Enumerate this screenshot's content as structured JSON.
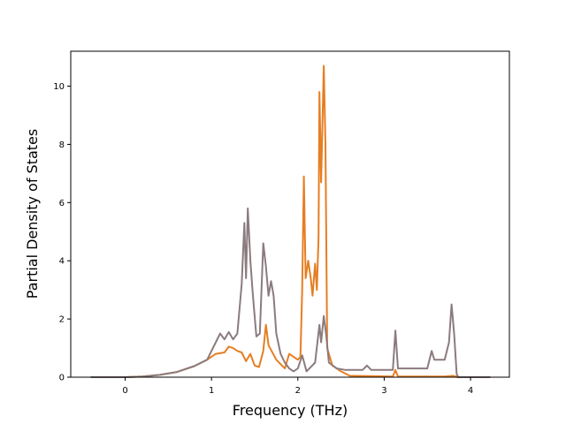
{
  "chart_data": {
    "type": "line",
    "xlabel": "Frequency (THz)",
    "ylabel": "Partial Density of States",
    "xlim": [
      -0.63,
      4.45
    ],
    "ylim": [
      0,
      11.2
    ],
    "xticks": [
      "0",
      "1",
      "2",
      "3",
      "4"
    ],
    "yticks": [
      "0",
      "2",
      "4",
      "6",
      "8",
      "10"
    ],
    "grid": false,
    "series": [
      {
        "color": "#e67e22",
        "points": [
          [
            -0.4,
            0
          ],
          [
            0.0,
            0
          ],
          [
            0.2,
            0.02
          ],
          [
            0.4,
            0.08
          ],
          [
            0.6,
            0.18
          ],
          [
            0.8,
            0.38
          ],
          [
            0.95,
            0.6
          ],
          [
            1.05,
            0.8
          ],
          [
            1.15,
            0.85
          ],
          [
            1.2,
            1.05
          ],
          [
            1.25,
            1.0
          ],
          [
            1.3,
            0.9
          ],
          [
            1.35,
            0.85
          ],
          [
            1.4,
            0.55
          ],
          [
            1.45,
            0.8
          ],
          [
            1.5,
            0.4
          ],
          [
            1.55,
            0.35
          ],
          [
            1.6,
            0.9
          ],
          [
            1.63,
            1.8
          ],
          [
            1.66,
            1.1
          ],
          [
            1.75,
            0.6
          ],
          [
            1.85,
            0.3
          ],
          [
            1.9,
            0.8
          ],
          [
            1.95,
            0.7
          ],
          [
            2.0,
            0.6
          ],
          [
            2.03,
            0.7
          ],
          [
            2.05,
            3.0
          ],
          [
            2.07,
            6.9
          ],
          [
            2.09,
            3.4
          ],
          [
            2.12,
            4.0
          ],
          [
            2.15,
            3.4
          ],
          [
            2.17,
            2.8
          ],
          [
            2.2,
            3.9
          ],
          [
            2.22,
            3.0
          ],
          [
            2.24,
            4.8
          ],
          [
            2.25,
            9.8
          ],
          [
            2.27,
            6.7
          ],
          [
            2.3,
            10.7
          ],
          [
            2.32,
            8.0
          ],
          [
            2.34,
            1.0
          ],
          [
            2.4,
            0.4
          ],
          [
            2.5,
            0.2
          ],
          [
            2.6,
            0.05
          ],
          [
            3.1,
            0.02
          ],
          [
            3.13,
            0.25
          ],
          [
            3.16,
            0.02
          ],
          [
            3.7,
            0.02
          ],
          [
            3.8,
            0.05
          ],
          [
            3.85,
            0
          ],
          [
            4.23,
            0
          ]
        ]
      },
      {
        "color": "#8b7b7e",
        "points": [
          [
            -0.4,
            0
          ],
          [
            0.0,
            0
          ],
          [
            0.2,
            0.02
          ],
          [
            0.4,
            0.08
          ],
          [
            0.6,
            0.18
          ],
          [
            0.8,
            0.38
          ],
          [
            0.95,
            0.6
          ],
          [
            1.0,
            0.9
          ],
          [
            1.05,
            1.2
          ],
          [
            1.1,
            1.5
          ],
          [
            1.15,
            1.3
          ],
          [
            1.2,
            1.55
          ],
          [
            1.25,
            1.3
          ],
          [
            1.3,
            1.5
          ],
          [
            1.35,
            3.2
          ],
          [
            1.38,
            5.3
          ],
          [
            1.4,
            3.4
          ],
          [
            1.42,
            5.8
          ],
          [
            1.45,
            4.0
          ],
          [
            1.48,
            2.8
          ],
          [
            1.52,
            1.4
          ],
          [
            1.56,
            1.5
          ],
          [
            1.6,
            4.6
          ],
          [
            1.63,
            3.8
          ],
          [
            1.66,
            2.8
          ],
          [
            1.69,
            3.3
          ],
          [
            1.72,
            2.8
          ],
          [
            1.75,
            1.5
          ],
          [
            1.8,
            0.8
          ],
          [
            1.85,
            0.5
          ],
          [
            1.9,
            0.3
          ],
          [
            1.95,
            0.2
          ],
          [
            2.0,
            0.3
          ],
          [
            2.05,
            0.75
          ],
          [
            2.1,
            0.2
          ],
          [
            2.2,
            0.5
          ],
          [
            2.25,
            1.8
          ],
          [
            2.27,
            1.2
          ],
          [
            2.3,
            2.1
          ],
          [
            2.33,
            1.4
          ],
          [
            2.36,
            0.5
          ],
          [
            2.45,
            0.3
          ],
          [
            2.55,
            0.25
          ],
          [
            2.75,
            0.25
          ],
          [
            2.8,
            0.4
          ],
          [
            2.85,
            0.25
          ],
          [
            3.1,
            0.25
          ],
          [
            3.13,
            1.6
          ],
          [
            3.16,
            0.3
          ],
          [
            3.5,
            0.3
          ],
          [
            3.55,
            0.9
          ],
          [
            3.58,
            0.6
          ],
          [
            3.7,
            0.6
          ],
          [
            3.75,
            1.2
          ],
          [
            3.78,
            2.5
          ],
          [
            3.81,
            1.5
          ],
          [
            3.84,
            0.1
          ],
          [
            3.86,
            0
          ],
          [
            4.23,
            0
          ]
        ]
      }
    ]
  }
}
